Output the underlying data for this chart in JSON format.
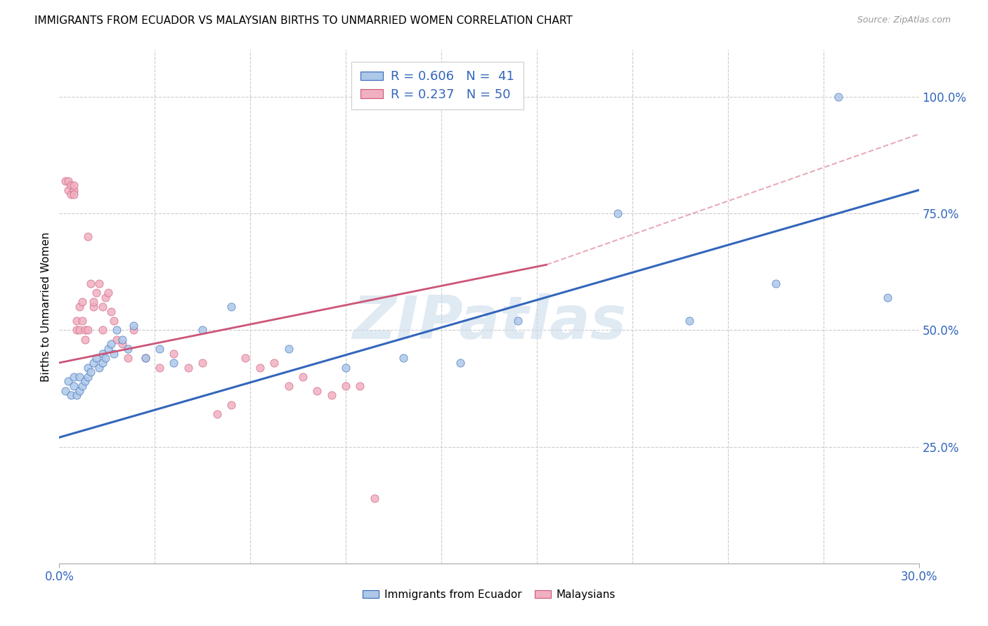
{
  "title": "IMMIGRANTS FROM ECUADOR VS MALAYSIAN BIRTHS TO UNMARRIED WOMEN CORRELATION CHART",
  "source": "Source: ZipAtlas.com",
  "ylabel": "Births to Unmarried Women",
  "legend_blue_r": "R = 0.606",
  "legend_blue_n": "N =  41",
  "legend_pink_r": "R = 0.237",
  "legend_pink_n": "N = 50",
  "blue_scatter_color": "#adc8e8",
  "blue_line_color": "#3366bb",
  "pink_scatter_color": "#f0b0c0",
  "pink_line_color": "#cc5577",
  "dash_color": "#dd8899",
  "watermark": "ZIPatlas",
  "watermark_color": "#ccdcec",
  "grid_color": "#cccccc",
  "xmin": 0.0,
  "xmax": 0.3,
  "ymin": 0.0,
  "ymax": 1.1,
  "blue_trend": [
    0.0,
    0.3,
    0.27,
    0.8
  ],
  "pink_trend_solid": [
    0.0,
    0.17,
    0.43,
    0.64
  ],
  "pink_trend_dash": [
    0.0,
    0.3,
    0.43,
    0.92
  ],
  "blue_x": [
    0.002,
    0.003,
    0.004,
    0.005,
    0.005,
    0.006,
    0.007,
    0.007,
    0.008,
    0.009,
    0.01,
    0.01,
    0.011,
    0.012,
    0.013,
    0.014,
    0.015,
    0.015,
    0.016,
    0.017,
    0.018,
    0.019,
    0.02,
    0.022,
    0.024,
    0.026,
    0.03,
    0.035,
    0.04,
    0.05,
    0.06,
    0.08,
    0.1,
    0.12,
    0.14,
    0.16,
    0.195,
    0.22,
    0.25,
    0.272,
    0.289
  ],
  "blue_y": [
    0.37,
    0.39,
    0.36,
    0.38,
    0.4,
    0.36,
    0.37,
    0.4,
    0.38,
    0.39,
    0.4,
    0.42,
    0.41,
    0.43,
    0.44,
    0.42,
    0.45,
    0.43,
    0.44,
    0.46,
    0.47,
    0.45,
    0.5,
    0.48,
    0.46,
    0.51,
    0.44,
    0.46,
    0.43,
    0.5,
    0.55,
    0.46,
    0.42,
    0.44,
    0.43,
    0.52,
    0.75,
    0.52,
    0.6,
    1.0,
    0.57
  ],
  "pink_x": [
    0.002,
    0.003,
    0.003,
    0.004,
    0.004,
    0.005,
    0.005,
    0.005,
    0.006,
    0.006,
    0.007,
    0.007,
    0.008,
    0.008,
    0.009,
    0.009,
    0.01,
    0.01,
    0.011,
    0.012,
    0.012,
    0.013,
    0.014,
    0.015,
    0.015,
    0.016,
    0.017,
    0.018,
    0.019,
    0.02,
    0.022,
    0.024,
    0.026,
    0.03,
    0.035,
    0.04,
    0.045,
    0.05,
    0.055,
    0.06,
    0.065,
    0.07,
    0.075,
    0.08,
    0.085,
    0.09,
    0.095,
    0.1,
    0.105,
    0.11
  ],
  "pink_y": [
    0.82,
    0.8,
    0.82,
    0.79,
    0.81,
    0.8,
    0.79,
    0.81,
    0.5,
    0.52,
    0.5,
    0.55,
    0.52,
    0.56,
    0.48,
    0.5,
    0.7,
    0.5,
    0.6,
    0.55,
    0.56,
    0.58,
    0.6,
    0.5,
    0.55,
    0.57,
    0.58,
    0.54,
    0.52,
    0.48,
    0.47,
    0.44,
    0.5,
    0.44,
    0.42,
    0.45,
    0.42,
    0.43,
    0.32,
    0.34,
    0.44,
    0.42,
    0.43,
    0.38,
    0.4,
    0.37,
    0.36,
    0.38,
    0.38,
    0.14
  ]
}
